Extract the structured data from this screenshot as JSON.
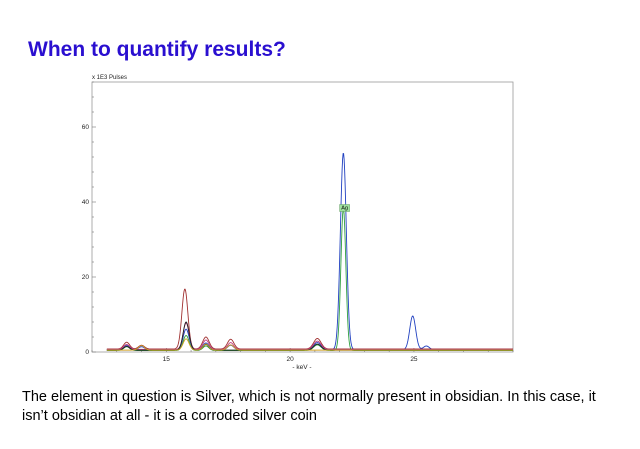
{
  "slide": {
    "title": "When to quantify results?",
    "caption": "The element in question is Silver, which is not normally present in obsidian. In this case, it isn’t obsidian at all - it is a corroded silver coin"
  },
  "chart_data": {
    "type": "line",
    "ylabel": "x 1E3 Pulses",
    "xlabel": "- keV -",
    "xlim": [
      12,
      29
    ],
    "ylim": [
      0,
      72
    ],
    "x_ticks": [
      15,
      20,
      25
    ],
    "y_ticks": [
      0,
      20,
      40,
      60
    ],
    "grid": false,
    "annotations": [
      {
        "text": "Ag",
        "x": 22.2,
        "y": 38
      }
    ],
    "series": [
      {
        "color": "#2040c0",
        "peaks": [
          [
            13.4,
            1.2,
            0.12
          ],
          [
            14.0,
            0.8,
            0.12
          ],
          [
            15.8,
            5.5,
            0.12
          ],
          [
            16.6,
            1.8,
            0.12
          ],
          [
            17.6,
            1.2,
            0.12
          ],
          [
            21.1,
            1.9,
            0.15
          ],
          [
            22.15,
            52.5,
            0.12
          ],
          [
            24.95,
            9.0,
            0.12
          ],
          [
            25.5,
            1.0,
            0.12
          ]
        ],
        "baseline": 0.6
      },
      {
        "color": "#a03030",
        "peaks": [
          [
            13.4,
            1.8,
            0.12
          ],
          [
            14.0,
            1.0,
            0.12
          ],
          [
            15.75,
            16.0,
            0.12
          ],
          [
            16.6,
            3.2,
            0.13
          ],
          [
            17.6,
            2.6,
            0.13
          ],
          [
            21.1,
            2.8,
            0.15
          ]
        ],
        "baseline": 0.8
      },
      {
        "color": "#30a040",
        "peaks": [
          [
            13.4,
            1.0,
            0.12
          ],
          [
            15.8,
            4.0,
            0.12
          ],
          [
            16.6,
            1.2,
            0.12
          ],
          [
            21.1,
            1.5,
            0.15
          ],
          [
            22.15,
            38.0,
            0.1
          ]
        ],
        "baseline": 0.4
      },
      {
        "color": "#c04080",
        "peaks": [
          [
            13.4,
            1.3,
            0.12
          ],
          [
            15.8,
            7.0,
            0.12
          ],
          [
            16.6,
            2.5,
            0.12
          ],
          [
            17.6,
            1.8,
            0.12
          ],
          [
            21.1,
            2.2,
            0.15
          ]
        ],
        "baseline": 0.7
      },
      {
        "color": "#202020",
        "peaks": [
          [
            13.4,
            1.0,
            0.12
          ],
          [
            15.8,
            7.5,
            0.12
          ],
          [
            16.6,
            1.5,
            0.12
          ],
          [
            21.1,
            1.6,
            0.15
          ]
        ],
        "baseline": 0.5
      },
      {
        "color": "#d0a020",
        "peaks": [
          [
            14.0,
            1.2,
            0.12
          ],
          [
            15.8,
            3.0,
            0.12
          ],
          [
            16.6,
            1.6,
            0.12
          ],
          [
            17.6,
            1.4,
            0.13
          ]
        ],
        "baseline": 0.5
      }
    ]
  }
}
